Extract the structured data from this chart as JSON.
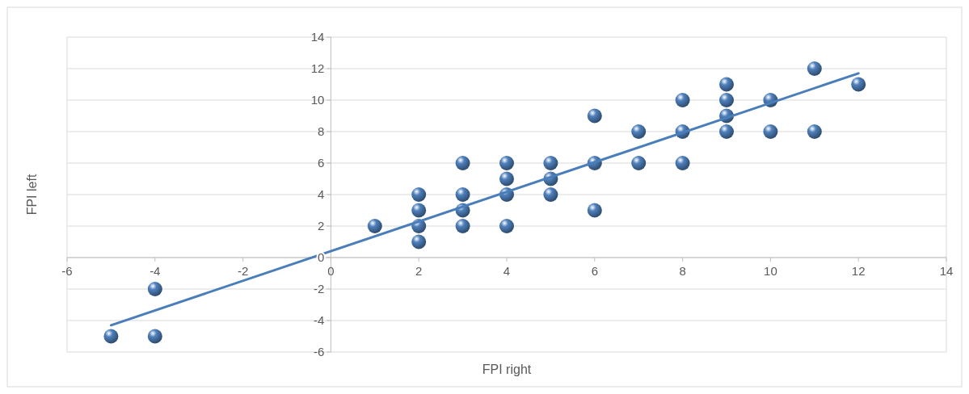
{
  "chart_data": {
    "type": "scatter",
    "xlabel": "FPI right",
    "ylabel": "FPI left",
    "xlim": [
      -6,
      14
    ],
    "xticks": [
      -6,
      -4,
      -2,
      0,
      2,
      4,
      6,
      8,
      10,
      12,
      14
    ],
    "ylim": [
      -6,
      14
    ],
    "yticks": [
      -6,
      -4,
      -2,
      0,
      2,
      4,
      6,
      8,
      10,
      12,
      14
    ],
    "grid": "y",
    "marker": "circle",
    "series": [
      {
        "color": "#4f81bd",
        "x": [
          -5,
          -4,
          -4,
          1,
          2,
          2,
          2,
          2,
          3,
          3,
          3,
          3,
          4,
          4,
          4,
          4,
          5,
          5,
          5,
          6,
          6,
          6,
          7,
          7,
          8,
          8,
          8,
          9,
          9,
          9,
          9,
          10,
          10,
          11,
          11,
          12
        ],
        "values": [
          -5,
          -2,
          -5,
          2,
          1,
          2,
          3,
          4,
          2,
          3,
          4,
          6,
          2,
          4,
          5,
          6,
          4,
          5,
          6,
          3,
          6,
          9,
          6,
          8,
          6,
          8,
          10,
          8,
          9,
          10,
          11,
          8,
          10,
          8,
          12,
          11
        ]
      },
      {
        "type": "line",
        "marker": "none",
        "color": "#4a7ebb",
        "x": [
          -5,
          12
        ],
        "values": [
          -4.3,
          11.7
        ]
      }
    ]
  }
}
